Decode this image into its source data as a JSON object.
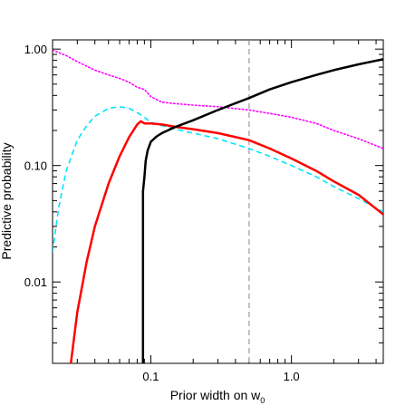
{
  "chart_data": {
    "type": "line",
    "title": "",
    "xlabel": "Prior width on w",
    "xlabel_subscript": "0",
    "ylabel": "Predictive probability",
    "xscale": "log",
    "yscale": "log",
    "xlim": [
      0.02,
      4.5
    ],
    "ylim": [
      0.002,
      1.2
    ],
    "x_ticks": [
      {
        "value": 0.1,
        "label": "0.1"
      },
      {
        "value": 1.0,
        "label": "1.0"
      }
    ],
    "y_ticks": [
      {
        "value": 0.01,
        "label": "0.01"
      },
      {
        "value": 0.1,
        "label": "0.10"
      },
      {
        "value": 1.0,
        "label": "1.00"
      }
    ],
    "grid": false,
    "legend": "none",
    "reference_line": {
      "x": 0.5,
      "style": "dashed",
      "color": "#999999"
    },
    "series": [
      {
        "color": "#ff00ff",
        "style": "dotted",
        "width": 1.6,
        "x": [
          0.02,
          0.025,
          0.03,
          0.04,
          0.05,
          0.06,
          0.07,
          0.08,
          0.09,
          0.1,
          0.12,
          0.15,
          0.2,
          0.3,
          0.5,
          0.7,
          1.0,
          1.5,
          2.0,
          3.0,
          4.5
        ],
        "y": [
          0.98,
          0.88,
          0.78,
          0.66,
          0.6,
          0.56,
          0.52,
          0.47,
          0.45,
          0.39,
          0.35,
          0.34,
          0.33,
          0.32,
          0.3,
          0.28,
          0.26,
          0.23,
          0.2,
          0.17,
          0.14
        ]
      },
      {
        "color": "#00e5ff",
        "style": "dashed",
        "width": 1.6,
        "x": [
          0.02,
          0.022,
          0.025,
          0.03,
          0.035,
          0.04,
          0.05,
          0.06,
          0.07,
          0.08,
          0.09,
          0.1,
          0.12,
          0.15,
          0.2,
          0.3,
          0.5,
          0.7,
          1.0,
          1.5,
          2.0,
          3.0,
          4.5
        ],
        "y": [
          0.018,
          0.042,
          0.09,
          0.165,
          0.22,
          0.265,
          0.31,
          0.32,
          0.31,
          0.285,
          0.26,
          0.235,
          0.22,
          0.205,
          0.19,
          0.17,
          0.14,
          0.12,
          0.1,
          0.08,
          0.066,
          0.052,
          0.04
        ]
      },
      {
        "color": "#ff0000",
        "style": "solid",
        "width": 2.5,
        "x": [
          0.027,
          0.03,
          0.035,
          0.04,
          0.05,
          0.06,
          0.07,
          0.08,
          0.085,
          0.09,
          0.1,
          0.12,
          0.15,
          0.2,
          0.3,
          0.5,
          0.7,
          1.0,
          1.5,
          2.0,
          3.0,
          4.5
        ],
        "y": [
          0.002,
          0.0055,
          0.015,
          0.03,
          0.07,
          0.12,
          0.175,
          0.225,
          0.24,
          0.23,
          0.23,
          0.225,
          0.215,
          0.205,
          0.19,
          0.165,
          0.14,
          0.115,
          0.09,
          0.073,
          0.056,
          0.038
        ]
      },
      {
        "color": "#000000",
        "style": "solid",
        "width": 2.5,
        "x": [
          0.088,
          0.088,
          0.09,
          0.092,
          0.095,
          0.1,
          0.11,
          0.12,
          0.15,
          0.2,
          0.3,
          0.5,
          0.7,
          1.0,
          1.5,
          2.0,
          3.0,
          4.5
        ],
        "y": [
          0.002,
          0.06,
          0.08,
          0.11,
          0.135,
          0.16,
          0.178,
          0.19,
          0.215,
          0.245,
          0.3,
          0.38,
          0.45,
          0.52,
          0.6,
          0.66,
          0.74,
          0.82
        ]
      }
    ]
  }
}
